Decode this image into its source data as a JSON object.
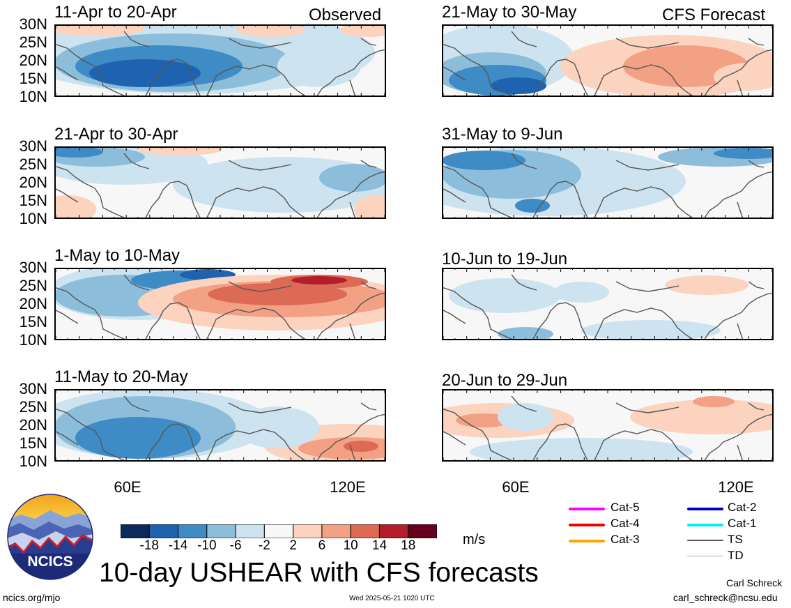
{
  "panels": [
    {
      "id": "p1",
      "title": "11-Apr to 20-Apr",
      "tag": "Observed"
    },
    {
      "id": "p2",
      "title": "21-Apr to 30-Apr",
      "tag": ""
    },
    {
      "id": "p3",
      "title": "1-May to 10-May",
      "tag": ""
    },
    {
      "id": "p4",
      "title": "11-May to 20-May",
      "tag": ""
    },
    {
      "id": "p5",
      "title": "21-May to 30-May",
      "tag": "CFS Forecast"
    },
    {
      "id": "p6",
      "title": "31-May to 9-Jun",
      "tag": ""
    },
    {
      "id": "p7",
      "title": "10-Jun to 19-Jun",
      "tag": ""
    },
    {
      "id": "p8",
      "title": "20-Jun to 29-Jun",
      "tag": ""
    }
  ],
  "lat_ticks": [
    "30N",
    "25N",
    "20N",
    "15N",
    "10N"
  ],
  "lon_ticks": [
    "60E",
    "120E"
  ],
  "colorbar": {
    "ticks": [
      "-18",
      "-14",
      "-10",
      "-6",
      "-2",
      "2",
      "6",
      "10",
      "14",
      "18"
    ],
    "unit": "m/s",
    "colors": [
      "#0b2a5c",
      "#1f63b0",
      "#3f8bc6",
      "#8cbedc",
      "#cde3f0",
      "#f7f7f7",
      "#fbd3bf",
      "#f3a184",
      "#dc6a55",
      "#b31e2c",
      "#67001f"
    ]
  },
  "legend": {
    "left": [
      {
        "label": "Cat-5",
        "color": "#ff00ff"
      },
      {
        "label": "Cat-4",
        "color": "#ee0000"
      },
      {
        "label": "Cat-3",
        "color": "#ffa500"
      }
    ],
    "right": [
      {
        "label": "Cat-2",
        "color": "#0000cc"
      },
      {
        "label": "Cat-1",
        "color": "#00eeee"
      },
      {
        "label": "TS",
        "color": "#555555"
      },
      {
        "label": "TD",
        "color": "#aaaaaa"
      }
    ]
  },
  "logo": {
    "text": "NCICS"
  },
  "footer": {
    "main_title": "10-day USHEAR with CFS forecasts",
    "url": "ncics.org/mjo",
    "timestamp": "Wed 2025-05-21 1020 UTC",
    "author": "Carl Schreck",
    "email": "carl_schreck@ncsu.edu"
  }
}
